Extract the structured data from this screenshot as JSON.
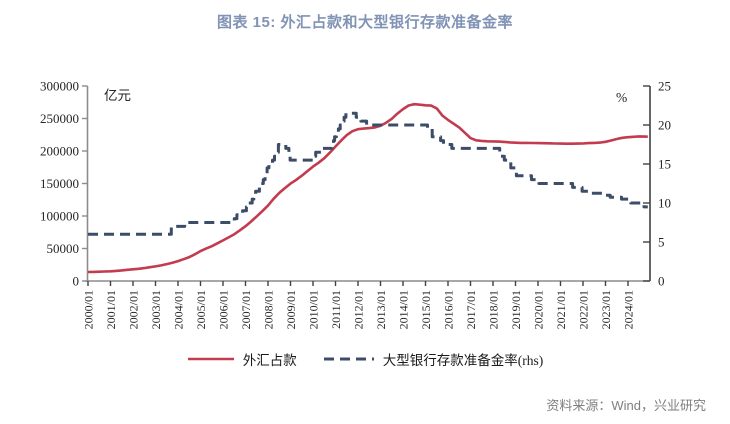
{
  "page": {
    "title": "图表 15: 外汇占款和大型银行存款准备金率",
    "source": "资料来源：Wind，兴业研究"
  },
  "colors": {
    "title": "#8193B5",
    "fx_line": "#C23B4E",
    "rrr_line": "#3D4D68",
    "axis": "#8C8C8C",
    "tick_text": "#262626",
    "source_text": "#7F7F7F"
  },
  "chart_data": {
    "type": "line",
    "title": "图表 15: 外汇占款和大型银行存款准备金率",
    "unit_left": "亿元",
    "unit_right": "%",
    "grid": false,
    "legend_position": "bottom",
    "x_range_years": [
      2000.0,
      2024.9
    ],
    "x_tick_labels": [
      "2000/01",
      "2001/01",
      "2002/01",
      "2003/01",
      "2004/01",
      "2005/01",
      "2006/01",
      "2007/01",
      "2008/01",
      "2009/01",
      "2010/01",
      "2011/01",
      "2012/01",
      "2013/01",
      "2014/01",
      "2015/01",
      "2016/01",
      "2017/01",
      "2018/01",
      "2019/01",
      "2020/01",
      "2021/01",
      "2022/01",
      "2023/01",
      "2024/01"
    ],
    "y_left": {
      "min": 0,
      "max": 300000,
      "tick_values": [
        0,
        50000,
        100000,
        150000,
        200000,
        250000,
        300000
      ],
      "tick_labels": [
        "0",
        "50000",
        "100000",
        "150000",
        "200000",
        "250000",
        "300000"
      ]
    },
    "y_right": {
      "min": 0,
      "max": 25,
      "tick_values": [
        0,
        5,
        10,
        15,
        20,
        25
      ],
      "tick_labels": [
        "0",
        "5",
        "10",
        "15",
        "20",
        "25"
      ]
    },
    "series": [
      {
        "key": "fx_position",
        "name": "外汇占款",
        "axis": "left",
        "style": "solid",
        "color": "#C23B4E",
        "points": [
          [
            2000.0,
            13800
          ],
          [
            2000.25,
            14000
          ],
          [
            2000.5,
            14300
          ],
          [
            2000.75,
            14600
          ],
          [
            2001.0,
            14900
          ],
          [
            2001.25,
            15500
          ],
          [
            2001.5,
            16300
          ],
          [
            2001.75,
            17300
          ],
          [
            2002.0,
            18000
          ],
          [
            2002.25,
            18800
          ],
          [
            2002.5,
            19900
          ],
          [
            2002.75,
            21200
          ],
          [
            2003.0,
            22400
          ],
          [
            2003.25,
            24000
          ],
          [
            2003.5,
            26000
          ],
          [
            2003.75,
            28200
          ],
          [
            2004.0,
            30600
          ],
          [
            2004.25,
            33500
          ],
          [
            2004.5,
            36800
          ],
          [
            2004.75,
            41000
          ],
          [
            2005.0,
            46000
          ],
          [
            2005.25,
            49800
          ],
          [
            2005.5,
            53600
          ],
          [
            2005.75,
            58000
          ],
          [
            2006.0,
            62400
          ],
          [
            2006.25,
            67000
          ],
          [
            2006.5,
            72000
          ],
          [
            2006.75,
            78000
          ],
          [
            2007.0,
            84300
          ],
          [
            2007.25,
            91500
          ],
          [
            2007.5,
            99500
          ],
          [
            2007.75,
            107500
          ],
          [
            2008.0,
            116000
          ],
          [
            2008.25,
            126500
          ],
          [
            2008.5,
            135500
          ],
          [
            2008.75,
            143000
          ],
          [
            2009.0,
            149800
          ],
          [
            2009.25,
            155500
          ],
          [
            2009.5,
            162000
          ],
          [
            2009.75,
            169000
          ],
          [
            2010.0,
            176000
          ],
          [
            2010.25,
            182000
          ],
          [
            2010.5,
            189000
          ],
          [
            2010.75,
            197500
          ],
          [
            2011.0,
            207000
          ],
          [
            2011.25,
            216000
          ],
          [
            2011.5,
            224500
          ],
          [
            2011.75,
            230500
          ],
          [
            2012.0,
            233500
          ],
          [
            2012.25,
            234500
          ],
          [
            2012.5,
            235200
          ],
          [
            2012.75,
            236300
          ],
          [
            2013.0,
            238800
          ],
          [
            2013.25,
            243500
          ],
          [
            2013.5,
            249500
          ],
          [
            2013.75,
            257500
          ],
          [
            2014.0,
            264500
          ],
          [
            2014.25,
            270000
          ],
          [
            2014.5,
            272000
          ],
          [
            2014.75,
            271200
          ],
          [
            2015.0,
            270300
          ],
          [
            2015.25,
            269800
          ],
          [
            2015.5,
            265500
          ],
          [
            2015.75,
            254500
          ],
          [
            2016.0,
            247800
          ],
          [
            2016.25,
            242000
          ],
          [
            2016.5,
            236000
          ],
          [
            2016.75,
            228000
          ],
          [
            2017.0,
            219800
          ],
          [
            2017.25,
            216500
          ],
          [
            2017.5,
            215500
          ],
          [
            2017.75,
            215000
          ],
          [
            2018.0,
            214800
          ],
          [
            2018.25,
            214500
          ],
          [
            2018.5,
            214000
          ],
          [
            2018.75,
            213300
          ],
          [
            2019.0,
            212800
          ],
          [
            2019.25,
            212500
          ],
          [
            2019.5,
            212400
          ],
          [
            2019.75,
            212300
          ],
          [
            2020.0,
            212200
          ],
          [
            2020.25,
            212000
          ],
          [
            2020.5,
            211800
          ],
          [
            2020.75,
            211600
          ],
          [
            2021.0,
            211400
          ],
          [
            2021.25,
            211300
          ],
          [
            2021.5,
            211300
          ],
          [
            2021.75,
            211400
          ],
          [
            2022.0,
            211600
          ],
          [
            2022.25,
            212100
          ],
          [
            2022.5,
            212500
          ],
          [
            2022.75,
            213000
          ],
          [
            2023.0,
            214200
          ],
          [
            2023.25,
            216200
          ],
          [
            2023.5,
            218400
          ],
          [
            2023.75,
            220300
          ],
          [
            2024.0,
            221200
          ],
          [
            2024.25,
            221800
          ],
          [
            2024.5,
            222400
          ],
          [
            2024.75,
            222100
          ],
          [
            2024.88,
            222000
          ]
        ]
      },
      {
        "key": "rrr",
        "name": "大型银行存款准备金率(rhs)",
        "axis": "right",
        "style": "dashed",
        "color": "#3D4D68",
        "step": true,
        "points": [
          [
            2000.0,
            6
          ],
          [
            2003.7,
            7
          ],
          [
            2004.3,
            7.5
          ],
          [
            2006.5,
            8
          ],
          [
            2006.62,
            8.5
          ],
          [
            2006.87,
            9
          ],
          [
            2007.04,
            9.5
          ],
          [
            2007.12,
            10
          ],
          [
            2007.3,
            10.5
          ],
          [
            2007.37,
            11
          ],
          [
            2007.45,
            11.5
          ],
          [
            2007.62,
            12
          ],
          [
            2007.7,
            12.5
          ],
          [
            2007.79,
            13
          ],
          [
            2007.87,
            13.5
          ],
          [
            2007.96,
            14.5
          ],
          [
            2008.04,
            15
          ],
          [
            2008.2,
            15.5
          ],
          [
            2008.29,
            16
          ],
          [
            2008.37,
            16.5
          ],
          [
            2008.46,
            17.5
          ],
          [
            2008.79,
            17
          ],
          [
            2008.93,
            16
          ],
          [
            2008.98,
            15.5
          ],
          [
            2010.04,
            16
          ],
          [
            2010.12,
            16.5
          ],
          [
            2010.37,
            17
          ],
          [
            2010.84,
            17.5
          ],
          [
            2010.91,
            18
          ],
          [
            2010.96,
            18.5
          ],
          [
            2011.04,
            19
          ],
          [
            2011.13,
            19.5
          ],
          [
            2011.21,
            20
          ],
          [
            2011.3,
            20.5
          ],
          [
            2011.38,
            21
          ],
          [
            2011.46,
            21.5
          ],
          [
            2011.92,
            21
          ],
          [
            2012.13,
            20.5
          ],
          [
            2012.38,
            20
          ],
          [
            2015.09,
            19.5
          ],
          [
            2015.3,
            18.5
          ],
          [
            2015.67,
            18
          ],
          [
            2015.8,
            17.5
          ],
          [
            2016.17,
            17
          ],
          [
            2018.3,
            16
          ],
          [
            2018.5,
            15.5
          ],
          [
            2018.79,
            14.5
          ],
          [
            2019.04,
            13.5
          ],
          [
            2019.71,
            13
          ],
          [
            2020.04,
            12.5
          ],
          [
            2021.54,
            12
          ],
          [
            2021.96,
            11.5
          ],
          [
            2022.3,
            11.25
          ],
          [
            2022.92,
            11
          ],
          [
            2023.21,
            10.75
          ],
          [
            2023.71,
            10.5
          ],
          [
            2024.12,
            10
          ],
          [
            2024.71,
            9.5
          ],
          [
            2024.88,
            9.5
          ]
        ]
      }
    ]
  }
}
